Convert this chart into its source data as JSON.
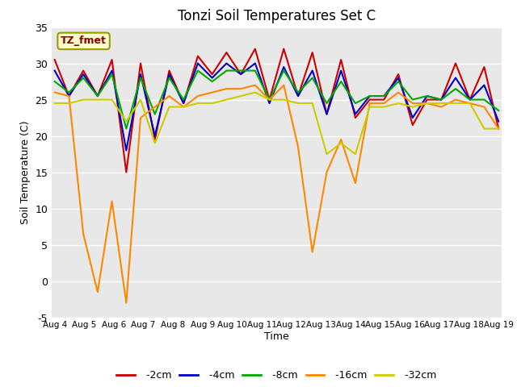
{
  "title": "Tonzi Soil Temperatures Set C",
  "xlabel": "Time",
  "ylabel": "Soil Temperature (C)",
  "ylim": [
    -5,
    35
  ],
  "annotation_label": "TZ_fmet",
  "bg_color": "#e8e8e8",
  "line_colors": {
    "-2cm": "#cc0000",
    "-4cm": "#0000cc",
    "-8cm": "#00aa00",
    "-16cm": "#ff8800",
    "-32cm": "#cccc00"
  },
  "xtick_labels": [
    "Aug 4",
    "Aug 5",
    "Aug 6",
    "Aug 7",
    "Aug 8",
    "Aug 9",
    "Aug 10",
    "Aug 11",
    "Aug 12",
    "Aug 13",
    "Aug 14",
    "Aug 15",
    "Aug 16",
    "Aug 17",
    "Aug 18",
    "Aug 19"
  ],
  "series": {
    "-2cm": [
      30.5,
      25.5,
      29.0,
      25.5,
      30.5,
      15.0,
      30.0,
      19.5,
      29.0,
      24.5,
      31.0,
      28.5,
      31.5,
      28.5,
      32.0,
      25.0,
      32.0,
      25.5,
      31.5,
      23.0,
      30.5,
      22.5,
      25.0,
      25.0,
      28.5,
      21.5,
      25.0,
      25.0,
      30.0,
      25.0,
      29.5,
      21.0
    ],
    "-4cm": [
      29.0,
      25.5,
      28.5,
      25.5,
      29.0,
      18.0,
      28.5,
      20.0,
      28.5,
      24.5,
      30.0,
      28.0,
      30.0,
      28.5,
      30.0,
      24.5,
      29.5,
      25.5,
      29.0,
      23.0,
      29.0,
      23.0,
      25.5,
      25.5,
      28.0,
      22.5,
      25.5,
      25.0,
      28.0,
      25.0,
      27.0,
      22.0
    ],
    "-8cm": [
      27.5,
      26.0,
      28.0,
      25.5,
      28.5,
      21.0,
      28.0,
      23.0,
      28.0,
      25.0,
      29.0,
      27.5,
      29.0,
      29.0,
      29.0,
      25.0,
      29.0,
      26.0,
      28.0,
      24.5,
      27.5,
      24.5,
      25.5,
      25.5,
      27.5,
      25.0,
      25.5,
      25.0,
      26.5,
      25.0,
      25.0,
      23.5
    ],
    "-16cm": [
      26.0,
      25.5,
      6.5,
      -1.5,
      11.0,
      -3.0,
      22.5,
      24.0,
      25.5,
      24.0,
      25.5,
      26.0,
      26.5,
      26.5,
      27.0,
      25.0,
      27.0,
      18.5,
      4.0,
      15.0,
      19.5,
      13.5,
      24.5,
      24.5,
      26.0,
      24.5,
      24.5,
      24.0,
      25.0,
      24.5,
      24.0,
      21.0
    ],
    "-32cm": [
      24.5,
      24.5,
      25.0,
      25.0,
      25.0,
      22.0,
      25.0,
      19.0,
      24.0,
      24.0,
      24.5,
      24.5,
      25.0,
      25.5,
      26.0,
      25.0,
      25.0,
      24.5,
      24.5,
      17.5,
      19.0,
      17.5,
      24.0,
      24.0,
      24.5,
      24.0,
      24.5,
      24.5,
      24.5,
      24.5,
      21.0,
      21.0
    ]
  },
  "n_points": 32,
  "n_days": 16
}
